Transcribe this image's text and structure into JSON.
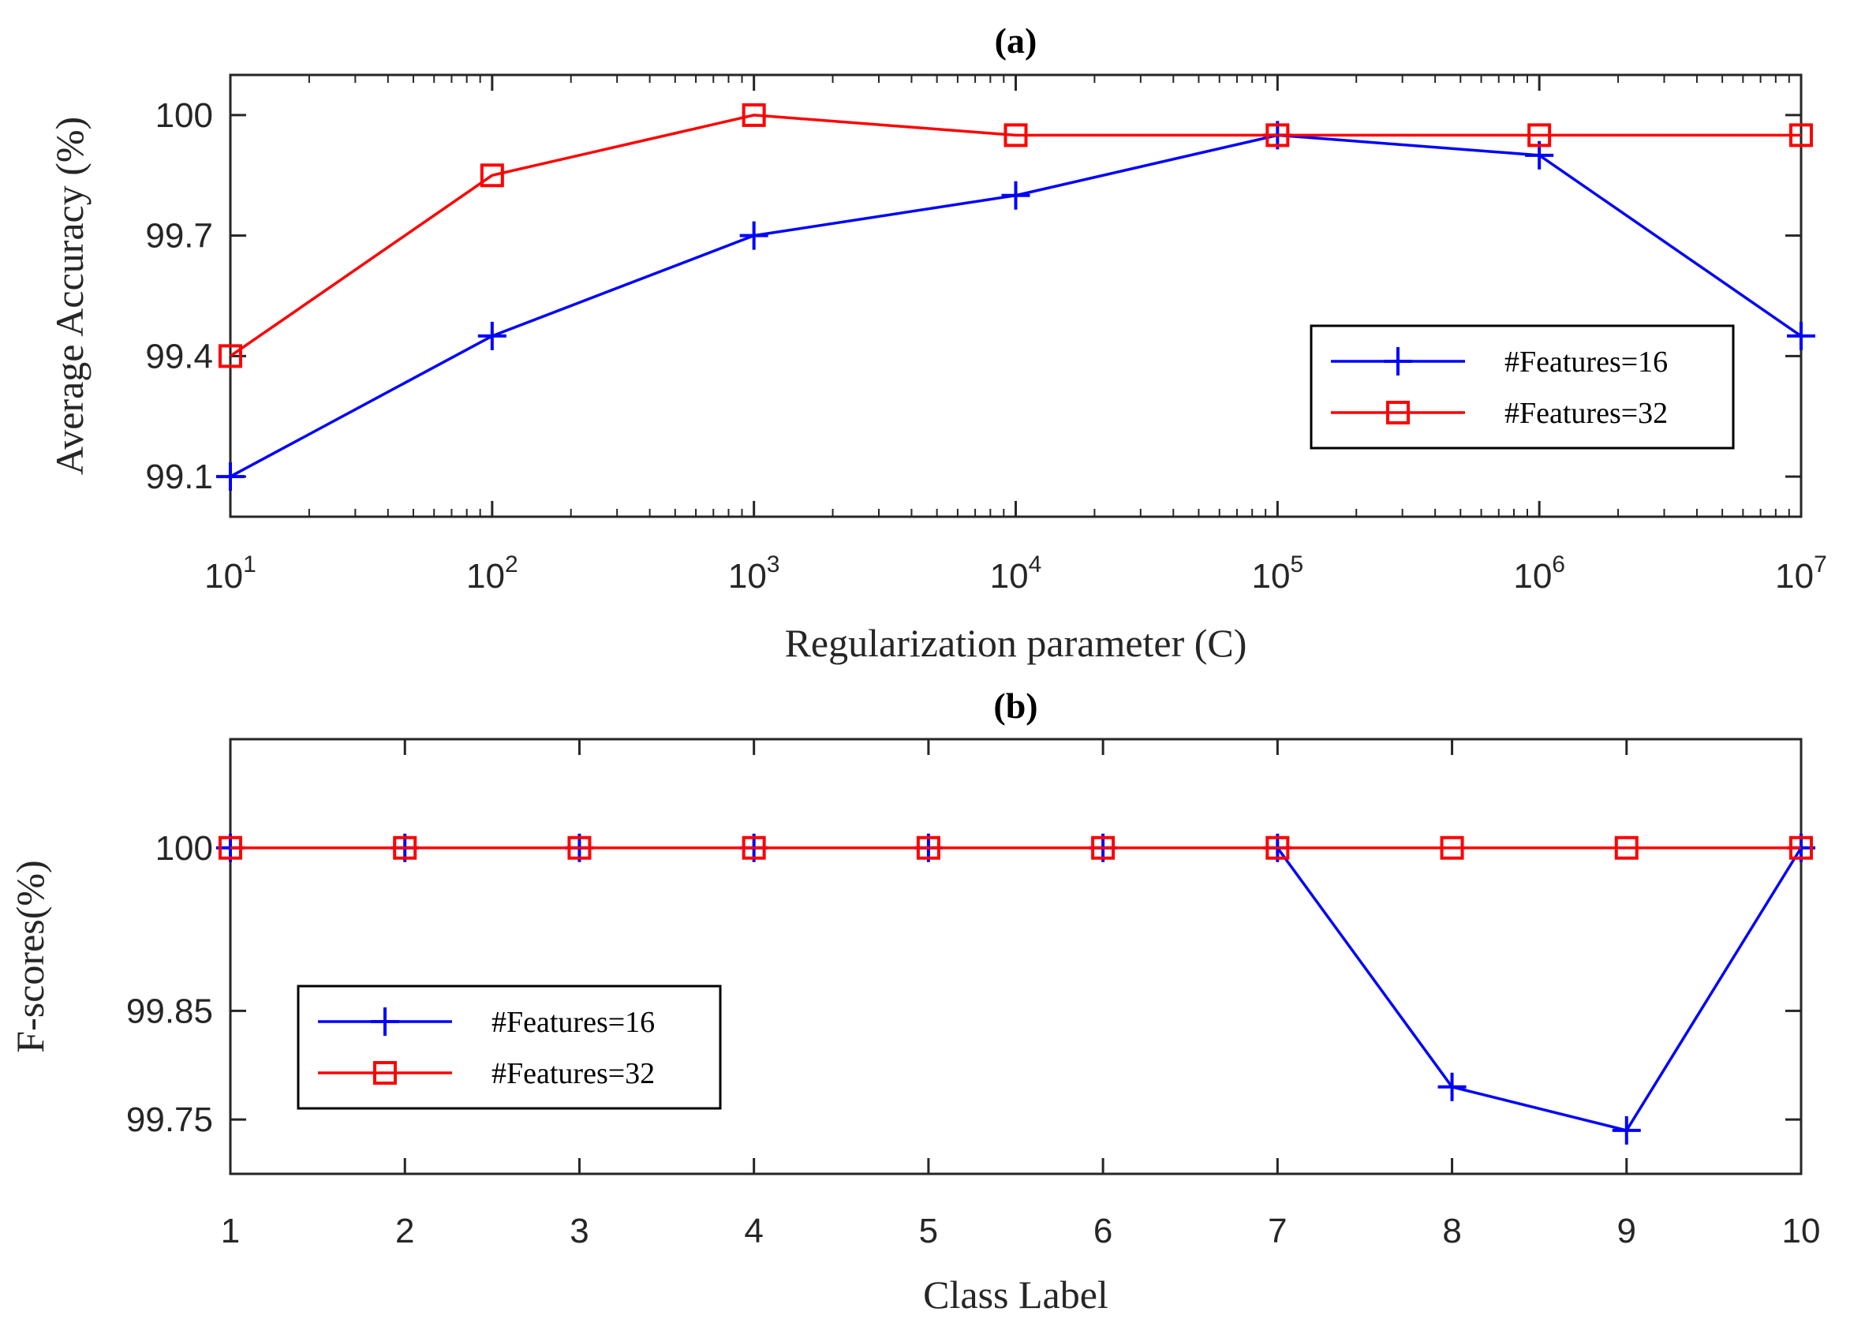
{
  "colors": {
    "series16": "#0000ff",
    "series32": "#ff0000",
    "axis": "#262626",
    "background": "#ffffff"
  },
  "chart_data": [
    {
      "type": "line",
      "title": "(a)",
      "xlabel": "Regularization parameter (C)",
      "ylabel": "Average Accuracy (%)",
      "xscale": "log",
      "xlim": [
        10,
        10000000
      ],
      "ylim": [
        99.0,
        100.1
      ],
      "xticks": [
        {
          "value": 10,
          "base": "10",
          "exp": "1"
        },
        {
          "value": 100,
          "base": "10",
          "exp": "2"
        },
        {
          "value": 1000,
          "base": "10",
          "exp": "3"
        },
        {
          "value": 10000,
          "base": "10",
          "exp": "4"
        },
        {
          "value": 100000,
          "base": "10",
          "exp": "5"
        },
        {
          "value": 1000000,
          "base": "10",
          "exp": "6"
        },
        {
          "value": 10000000,
          "base": "10",
          "exp": "7"
        }
      ],
      "yticks": [
        {
          "value": 99.1,
          "label": "99.1"
        },
        {
          "value": 99.4,
          "label": "99.4"
        },
        {
          "value": 99.7,
          "label": "99.7"
        },
        {
          "value": 100,
          "label": "100"
        }
      ],
      "x": [
        10,
        100,
        1000,
        10000,
        100000,
        1000000,
        10000000
      ],
      "series": [
        {
          "name": "#Features=16",
          "marker": "plus",
          "color": "#0000ff",
          "values": [
            99.1,
            99.45,
            99.7,
            99.8,
            99.95,
            99.9,
            99.45
          ]
        },
        {
          "name": "#Features=32",
          "marker": "square",
          "color": "#ff0000",
          "values": [
            99.4,
            99.85,
            100.0,
            99.95,
            99.95,
            99.95,
            99.95
          ]
        }
      ],
      "legend": {
        "placement": "right"
      }
    },
    {
      "type": "line",
      "title": "(b)",
      "xlabel": "Class Label",
      "ylabel": "F-scores(%)",
      "xscale": "linear",
      "xlim": [
        1,
        10
      ],
      "ylim": [
        99.7,
        100.1
      ],
      "xticks": [
        {
          "value": 1,
          "label": "1"
        },
        {
          "value": 2,
          "label": "2"
        },
        {
          "value": 3,
          "label": "3"
        },
        {
          "value": 4,
          "label": "4"
        },
        {
          "value": 5,
          "label": "5"
        },
        {
          "value": 6,
          "label": "6"
        },
        {
          "value": 7,
          "label": "7"
        },
        {
          "value": 8,
          "label": "8"
        },
        {
          "value": 9,
          "label": "9"
        },
        {
          "value": 10,
          "label": "10"
        }
      ],
      "yticks": [
        {
          "value": 99.75,
          "label": "99.75"
        },
        {
          "value": 99.85,
          "label": "99.85"
        },
        {
          "value": 100,
          "label": "100"
        }
      ],
      "x": [
        1,
        2,
        3,
        4,
        5,
        6,
        7,
        8,
        9,
        10
      ],
      "series": [
        {
          "name": "#Features=16",
          "marker": "plus",
          "color": "#0000ff",
          "values": [
            100,
            100,
            100,
            100,
            100,
            100,
            100,
            99.78,
            99.74,
            100
          ]
        },
        {
          "name": "#Features=32",
          "marker": "square",
          "color": "#ff0000",
          "values": [
            100,
            100,
            100,
            100,
            100,
            100,
            100,
            100,
            100,
            100
          ]
        }
      ],
      "legend": {
        "placement": "lower-left"
      }
    }
  ]
}
